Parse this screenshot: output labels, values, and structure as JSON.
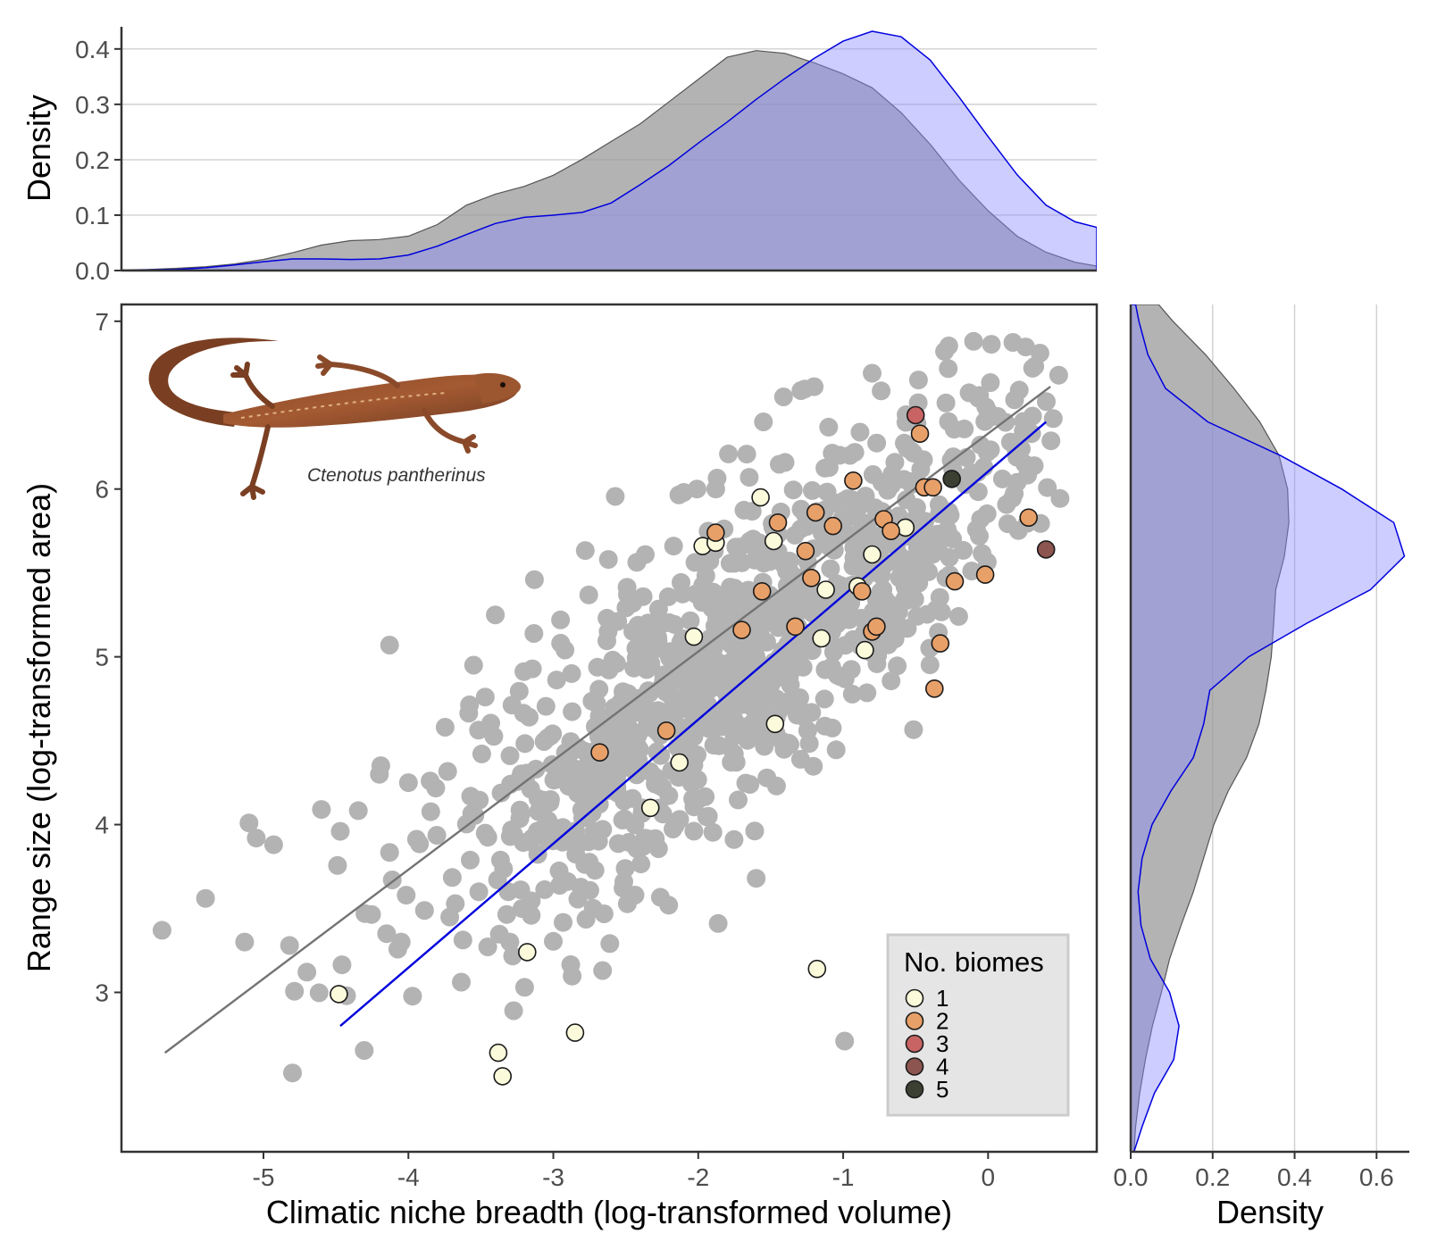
{
  "chart_data": [
    {
      "type": "scatter",
      "xlabel": "Climatic niche breadth (log-transformed volume)",
      "ylabel": "Range size (log-transformed area)",
      "xlim": [
        -5.98,
        0.75
      ],
      "ylim": [
        2.05,
        7.1
      ],
      "xticks": [
        "-5",
        "-4",
        "-3",
        "-2",
        "-1",
        "0"
      ],
      "yticks": [
        "3",
        "4",
        "5",
        "6",
        "7"
      ],
      "annotation": "Ctenotus pantherinus",
      "background_points": {
        "color": "#b3b3b3",
        "count": 1050,
        "cloud_seed": 20240611,
        "sample": [
          [
            -5.7,
            3.37
          ],
          [
            -5.4,
            3.56
          ],
          [
            -5.13,
            3.3
          ],
          [
            -5.1,
            4.01
          ],
          [
            -5.05,
            3.92
          ],
          [
            -4.93,
            3.88
          ],
          [
            -4.82,
            3.28
          ],
          [
            -4.8,
            2.52
          ],
          [
            -4.6,
            4.09
          ],
          [
            -4.47,
            3.96
          ],
          [
            -4.3,
            3.47
          ],
          [
            -4.2,
            4.3
          ],
          [
            -4.15,
            3.35
          ],
          [
            -4.13,
            5.07
          ],
          [
            -4.05,
            3.3
          ],
          [
            -4.0,
            4.25
          ],
          [
            -3.85,
            4.26
          ],
          [
            -3.55,
            4.95
          ],
          [
            -3.47,
            4.76
          ],
          [
            -3.4,
            5.25
          ],
          [
            -3.3,
            3.3
          ],
          [
            -3.13,
            5.46
          ],
          [
            -2.95,
            5.22
          ],
          [
            -2.62,
            5.58
          ],
          [
            -2.43,
            5.05
          ],
          [
            -2.38,
            3.87
          ],
          [
            -2.17,
            5.66
          ],
          [
            -2.1,
            5.98
          ],
          [
            -1.93,
            4.05
          ],
          [
            -1.6,
            3.68
          ],
          [
            -1.55,
            6.4
          ],
          [
            -1.2,
            6.61
          ],
          [
            -0.99,
            2.71
          ],
          [
            -0.8,
            6.69
          ],
          [
            -0.48,
            6.65
          ],
          [
            -0.3,
            6.82
          ],
          [
            -0.1,
            6.88
          ],
          [
            0.2,
            6.04
          ],
          [
            0.45,
            6.42
          ]
        ]
      },
      "series": [
        {
          "name": "1",
          "color": "#fbfbdc",
          "points": [
            [
              -4.48,
              2.99
            ],
            [
              -3.38,
              2.64
            ],
            [
              -3.35,
              2.5
            ],
            [
              -3.18,
              3.24
            ],
            [
              -2.85,
              2.76
            ],
            [
              -2.33,
              4.1
            ],
            [
              -2.13,
              4.37
            ],
            [
              -2.03,
              5.12
            ],
            [
              -1.97,
              5.66
            ],
            [
              -1.88,
              5.68
            ],
            [
              -1.57,
              5.95
            ],
            [
              -1.48,
              5.69
            ],
            [
              -1.47,
              4.6
            ],
            [
              -1.18,
              3.14
            ],
            [
              -1.15,
              5.11
            ],
            [
              -1.12,
              5.4
            ],
            [
              -0.9,
              5.42
            ],
            [
              -0.85,
              5.04
            ],
            [
              -0.8,
              5.61
            ],
            [
              -0.57,
              5.77
            ]
          ]
        },
        {
          "name": "2",
          "color": "#e8a069",
          "points": [
            [
              -2.68,
              4.43
            ],
            [
              -2.22,
              4.56
            ],
            [
              -1.88,
              5.74
            ],
            [
              -1.7,
              5.16
            ],
            [
              -1.56,
              5.39
            ],
            [
              -1.45,
              5.8
            ],
            [
              -1.33,
              5.18
            ],
            [
              -1.26,
              5.63
            ],
            [
              -1.22,
              5.47
            ],
            [
              -1.19,
              5.86
            ],
            [
              -1.07,
              5.78
            ],
            [
              -0.93,
              6.05
            ],
            [
              -0.87,
              5.39
            ],
            [
              -0.8,
              5.15
            ],
            [
              -0.77,
              5.18
            ],
            [
              -0.72,
              5.82
            ],
            [
              -0.67,
              5.75
            ],
            [
              -0.47,
              6.33
            ],
            [
              -0.44,
              6.01
            ],
            [
              -0.38,
              6.01
            ],
            [
              -0.37,
              4.81
            ],
            [
              -0.33,
              5.08
            ],
            [
              -0.23,
              5.45
            ],
            [
              -0.02,
              5.49
            ],
            [
              0.28,
              5.83
            ]
          ]
        },
        {
          "name": "3",
          "color": "#c86464",
          "points": [
            [
              -0.5,
              6.44
            ]
          ]
        },
        {
          "name": "4",
          "color": "#8c5550",
          "points": [
            [
              0.4,
              5.64
            ]
          ]
        },
        {
          "name": "5",
          "color": "#3c4032",
          "points": [
            [
              -0.25,
              6.06
            ]
          ]
        }
      ],
      "trend_lines": [
        {
          "color": "#737373",
          "from": [
            -5.68,
            2.64
          ],
          "to": [
            0.43,
            6.61
          ]
        },
        {
          "color": "#0000dd",
          "from": [
            -4.47,
            2.8
          ],
          "to": [
            0.4,
            6.4
          ]
        }
      ],
      "legend": {
        "title": "No. biomes",
        "position": "bottom-right",
        "items": [
          "1",
          "2",
          "3",
          "4",
          "5"
        ]
      }
    },
    {
      "type": "area",
      "panel": "top-marginal",
      "ylabel": "Density",
      "ylim": [
        0,
        0.44
      ],
      "yticks": [
        "0.0",
        "0.1",
        "0.2",
        "0.3",
        "0.4"
      ],
      "grid": true,
      "series": [
        {
          "color": "#999999",
          "x": [
            -6.0,
            -5.8,
            -5.6,
            -5.4,
            -5.2,
            -5.0,
            -4.8,
            -4.6,
            -4.4,
            -4.2,
            -4.0,
            -3.8,
            -3.6,
            -3.4,
            -3.2,
            -3.0,
            -2.8,
            -2.6,
            -2.4,
            -2.2,
            -2.0,
            -1.8,
            -1.6,
            -1.4,
            -1.2,
            -1.0,
            -0.8,
            -0.6,
            -0.4,
            -0.2,
            0.0,
            0.2,
            0.4,
            0.6,
            0.75
          ],
          "values": [
            0.001,
            0.002,
            0.004,
            0.007,
            0.012,
            0.02,
            0.032,
            0.046,
            0.054,
            0.056,
            0.062,
            0.083,
            0.118,
            0.138,
            0.152,
            0.172,
            0.201,
            0.233,
            0.265,
            0.305,
            0.345,
            0.385,
            0.397,
            0.392,
            0.375,
            0.355,
            0.33,
            0.285,
            0.228,
            0.163,
            0.108,
            0.062,
            0.033,
            0.015,
            0.008
          ]
        },
        {
          "color": "#ccccff",
          "x": [
            -6.0,
            -5.8,
            -5.6,
            -5.4,
            -5.2,
            -5.0,
            -4.8,
            -4.6,
            -4.4,
            -4.2,
            -4.0,
            -3.8,
            -3.6,
            -3.4,
            -3.2,
            -3.0,
            -2.8,
            -2.6,
            -2.4,
            -2.2,
            -2.0,
            -1.8,
            -1.6,
            -1.4,
            -1.2,
            -1.0,
            -0.8,
            -0.6,
            -0.4,
            -0.2,
            0.0,
            0.2,
            0.4,
            0.6,
            0.75
          ],
          "values": [
            0.0,
            0.001,
            0.002,
            0.005,
            0.01,
            0.016,
            0.021,
            0.021,
            0.02,
            0.021,
            0.028,
            0.044,
            0.065,
            0.085,
            0.096,
            0.1,
            0.105,
            0.122,
            0.155,
            0.19,
            0.23,
            0.268,
            0.309,
            0.347,
            0.383,
            0.414,
            0.432,
            0.422,
            0.38,
            0.313,
            0.242,
            0.173,
            0.118,
            0.088,
            0.078
          ]
        }
      ]
    },
    {
      "type": "area",
      "panel": "right-marginal",
      "xlabel": "Density",
      "xlim": [
        0,
        0.68
      ],
      "xticks": [
        "0.0",
        "0.2",
        "0.4",
        "0.6"
      ],
      "grid": true,
      "series": [
        {
          "color": "#999999",
          "y": [
            2.05,
            2.2,
            2.4,
            2.6,
            2.8,
            3.0,
            3.2,
            3.4,
            3.6,
            3.8,
            4.0,
            4.2,
            4.4,
            4.6,
            4.8,
            5.0,
            5.2,
            5.4,
            5.6,
            5.8,
            6.0,
            6.2,
            6.4,
            6.6,
            6.8,
            7.0,
            7.1
          ],
          "values": [
            0.008,
            0.012,
            0.022,
            0.036,
            0.053,
            0.075,
            0.095,
            0.123,
            0.153,
            0.178,
            0.203,
            0.238,
            0.283,
            0.313,
            0.33,
            0.343,
            0.349,
            0.354,
            0.375,
            0.386,
            0.383,
            0.362,
            0.315,
            0.252,
            0.183,
            0.103,
            0.068
          ]
        },
        {
          "color": "#ccccff",
          "y": [
            2.05,
            2.2,
            2.4,
            2.6,
            2.8,
            3.0,
            3.2,
            3.4,
            3.6,
            3.8,
            4.0,
            4.2,
            4.4,
            4.6,
            4.8,
            5.0,
            5.2,
            5.4,
            5.6,
            5.8,
            6.0,
            6.2,
            6.4,
            6.6,
            6.8,
            7.0,
            7.1
          ],
          "values": [
            0.008,
            0.028,
            0.058,
            0.105,
            0.118,
            0.095,
            0.048,
            0.025,
            0.018,
            0.028,
            0.052,
            0.098,
            0.153,
            0.178,
            0.193,
            0.288,
            0.43,
            0.585,
            0.668,
            0.642,
            0.515,
            0.365,
            0.188,
            0.085,
            0.042,
            0.02,
            0.012
          ]
        }
      ]
    }
  ]
}
